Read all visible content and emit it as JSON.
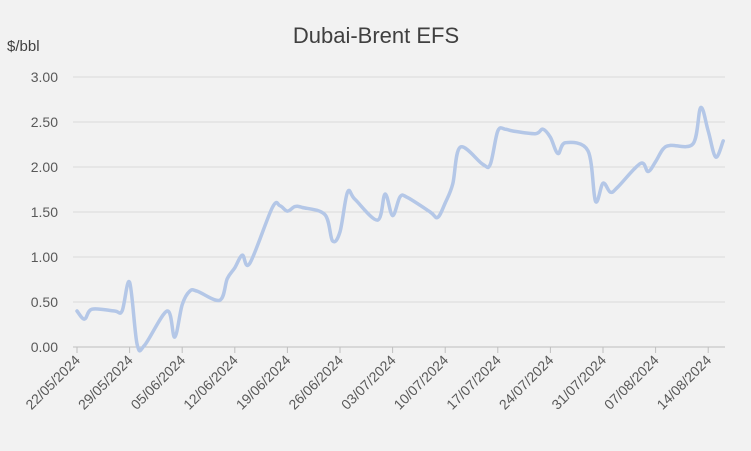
{
  "chart_data": {
    "type": "line",
    "title": "Dubai-Brent EFS",
    "ylabel": "$/bbl",
    "xlabel": "",
    "ylim": [
      0,
      3
    ],
    "yticks": [
      "0.00",
      "0.50",
      "1.00",
      "1.50",
      "2.00",
      "2.50",
      "3.00"
    ],
    "x_tick_labels": [
      "22/05/2024",
      "29/05/2024",
      "05/06/2024",
      "12/06/2024",
      "19/06/2024",
      "26/06/2024",
      "03/07/2024",
      "10/07/2024",
      "17/07/2024",
      "24/07/2024",
      "31/07/2024",
      "07/08/2024",
      "14/08/2024"
    ],
    "grid": true,
    "legend": "none",
    "series": [
      {
        "color": "#b4c7e7",
        "points": [
          [
            "2024-05-22",
            0.4
          ],
          [
            "2024-05-23",
            0.31
          ],
          [
            "2024-05-24",
            0.42
          ],
          [
            "2024-05-27",
            0.4
          ],
          [
            "2024-05-28",
            0.4
          ],
          [
            "2024-05-29",
            0.72
          ],
          [
            "2024-05-30",
            0.03
          ],
          [
            "2024-05-31",
            0.02
          ],
          [
            "2024-06-03",
            0.4
          ],
          [
            "2024-06-04",
            0.11
          ],
          [
            "2024-06-05",
            0.47
          ],
          [
            "2024-06-06",
            0.62
          ],
          [
            "2024-06-07",
            0.62
          ],
          [
            "2024-06-10",
            0.52
          ],
          [
            "2024-06-11",
            0.76
          ],
          [
            "2024-06-12",
            0.88
          ],
          [
            "2024-06-13",
            1.02
          ],
          [
            "2024-06-14",
            0.93
          ],
          [
            "2024-06-17",
            1.55
          ],
          [
            "2024-06-18",
            1.57
          ],
          [
            "2024-06-19",
            1.51
          ],
          [
            "2024-06-20",
            1.56
          ],
          [
            "2024-06-21",
            1.55
          ],
          [
            "2024-06-24",
            1.47
          ],
          [
            "2024-06-25",
            1.18
          ],
          [
            "2024-06-26",
            1.28
          ],
          [
            "2024-06-27",
            1.72
          ],
          [
            "2024-06-28",
            1.64
          ],
          [
            "2024-07-01",
            1.41
          ],
          [
            "2024-07-02",
            1.7
          ],
          [
            "2024-07-03",
            1.46
          ],
          [
            "2024-07-04",
            1.67
          ],
          [
            "2024-07-05",
            1.66
          ],
          [
            "2024-07-08",
            1.5
          ],
          [
            "2024-07-09",
            1.44
          ],
          [
            "2024-07-10",
            1.6
          ],
          [
            "2024-07-11",
            1.81
          ],
          [
            "2024-07-12",
            2.22
          ],
          [
            "2024-07-15",
            2.03
          ],
          [
            "2024-07-16",
            2.03
          ],
          [
            "2024-07-17",
            2.4
          ],
          [
            "2024-07-18",
            2.42
          ],
          [
            "2024-07-19",
            2.4
          ],
          [
            "2024-07-22",
            2.37
          ],
          [
            "2024-07-23",
            2.42
          ],
          [
            "2024-07-24",
            2.33
          ],
          [
            "2024-07-25",
            2.15
          ],
          [
            "2024-07-26",
            2.27
          ],
          [
            "2024-07-29",
            2.18
          ],
          [
            "2024-07-30",
            1.62
          ],
          [
            "2024-07-31",
            1.82
          ],
          [
            "2024-08-01",
            1.72
          ],
          [
            "2024-08-02",
            1.78
          ],
          [
            "2024-08-05",
            2.04
          ],
          [
            "2024-08-06",
            1.95
          ],
          [
            "2024-08-07",
            2.06
          ],
          [
            "2024-08-08",
            2.2
          ],
          [
            "2024-08-09",
            2.24
          ],
          [
            "2024-08-12",
            2.26
          ],
          [
            "2024-08-13",
            2.66
          ],
          [
            "2024-08-14",
            2.4
          ],
          [
            "2024-08-15",
            2.11
          ],
          [
            "2024-08-16",
            2.29
          ]
        ]
      }
    ]
  }
}
